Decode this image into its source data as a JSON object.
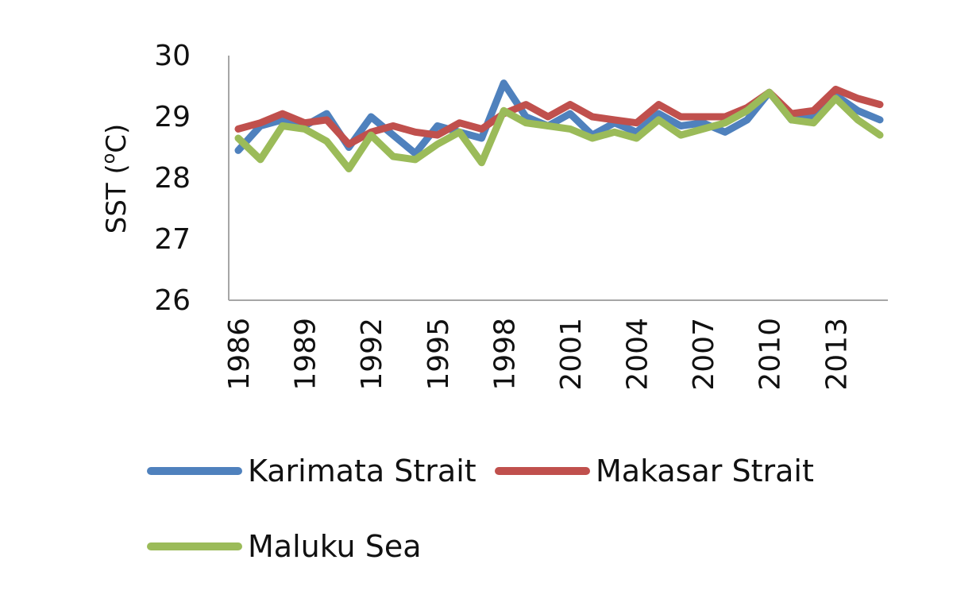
{
  "chart_data": {
    "type": "line",
    "ylabel": "SST (°C)",
    "ylabel_parts": {
      "base": "SST (",
      "superscript": "o",
      "unit": "C)"
    },
    "ylim": [
      26,
      30
    ],
    "yticks": [
      26,
      27,
      28,
      29,
      30
    ],
    "x": [
      1986,
      1987,
      1988,
      1989,
      1990,
      1991,
      1992,
      1993,
      1994,
      1995,
      1996,
      1997,
      1998,
      1999,
      2000,
      2001,
      2002,
      2003,
      2004,
      2005,
      2006,
      2007,
      2008,
      2009,
      2010,
      2011,
      2012,
      2013,
      2014,
      2015
    ],
    "xtick_labels": [
      "1986",
      "1989",
      "1992",
      "1995",
      "1998",
      "2001",
      "2004",
      "2007",
      "2010",
      "2013"
    ],
    "grid": false,
    "legend_position": "bottom",
    "series": [
      {
        "name": "Karimata Strait",
        "color": "#4f81bd",
        "values": [
          28.45,
          28.85,
          28.95,
          28.85,
          29.05,
          28.5,
          29.0,
          28.7,
          28.4,
          28.85,
          28.75,
          28.65,
          29.55,
          29.0,
          28.85,
          29.05,
          28.7,
          28.9,
          28.75,
          29.05,
          28.85,
          28.9,
          28.75,
          28.95,
          29.4,
          28.95,
          29.0,
          29.35,
          29.1,
          28.95
        ]
      },
      {
        "name": "Makasar Strait",
        "color": "#c0504d",
        "values": [
          28.8,
          28.9,
          29.05,
          28.9,
          28.95,
          28.55,
          28.75,
          28.85,
          28.75,
          28.7,
          28.9,
          28.8,
          29.05,
          29.2,
          29.0,
          29.2,
          29.0,
          28.95,
          28.9,
          29.2,
          29.0,
          29.0,
          29.0,
          29.15,
          29.4,
          29.05,
          29.1,
          29.45,
          29.3,
          29.2
        ]
      },
      {
        "name": "Maluku Sea",
        "color": "#9bbb59",
        "values": [
          28.65,
          28.3,
          28.85,
          28.8,
          28.6,
          28.15,
          28.7,
          28.35,
          28.3,
          28.55,
          28.75,
          28.25,
          29.1,
          28.9,
          28.85,
          28.8,
          28.65,
          28.75,
          28.65,
          28.95,
          28.7,
          28.8,
          28.9,
          29.1,
          29.4,
          28.95,
          28.9,
          29.3,
          28.95,
          28.7
        ]
      }
    ]
  }
}
